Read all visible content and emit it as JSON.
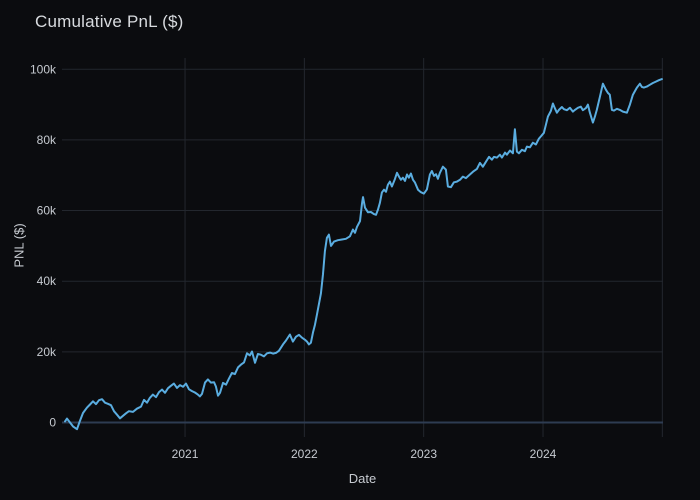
{
  "chart_data": {
    "type": "line",
    "title": "Cumulative PnL ($)",
    "xlabel": "Date",
    "ylabel": "PNL ($)",
    "legend": "none",
    "grid": true,
    "x_unit": "decimal_year",
    "xlim": [
      2019.97,
      2025.0
    ],
    "ylim": [
      -4000,
      103200
    ],
    "x_ticks": [
      {
        "value": 2021,
        "label": "2021"
      },
      {
        "value": 2022,
        "label": "2022"
      },
      {
        "value": 2023,
        "label": "2023"
      },
      {
        "value": 2024,
        "label": "2024"
      }
    ],
    "x_gridlines": [
      2021,
      2022,
      2023,
      2024,
      2025
    ],
    "y_ticks": [
      {
        "value": 0,
        "label": "0"
      },
      {
        "value": 20000,
        "label": "20k"
      },
      {
        "value": 40000,
        "label": "40k"
      },
      {
        "value": 60000,
        "label": "60k"
      },
      {
        "value": 80000,
        "label": "80k"
      },
      {
        "value": 100000,
        "label": "100k"
      }
    ],
    "theme": {
      "background": "#0b0c0f",
      "grid_color": "#23272e",
      "zeroline_color": "#2e3c52",
      "line_color": "#5aade0",
      "title_color": "#d8dbdf",
      "tick_color": "#c6cad0"
    },
    "series": [
      {
        "name": "Cumulative PnL",
        "color": "#5aade0",
        "points": [
          [
            2019.994,
            300
          ],
          [
            2020.011,
            1100
          ],
          [
            2020.036,
            0
          ],
          [
            2020.061,
            -1100
          ],
          [
            2020.095,
            -1900
          ],
          [
            2020.12,
            500
          ],
          [
            2020.145,
            2700
          ],
          [
            2020.178,
            4200
          ],
          [
            2020.204,
            5100
          ],
          [
            2020.229,
            6000
          ],
          [
            2020.254,
            5200
          ],
          [
            2020.279,
            6300
          ],
          [
            2020.304,
            6600
          ],
          [
            2020.329,
            5600
          ],
          [
            2020.354,
            5300
          ],
          [
            2020.38,
            4900
          ],
          [
            2020.405,
            3200
          ],
          [
            2020.43,
            2200
          ],
          [
            2020.455,
            1200
          ],
          [
            2020.48,
            1900
          ],
          [
            2020.505,
            2600
          ],
          [
            2020.53,
            3200
          ],
          [
            2020.564,
            3000
          ],
          [
            2020.597,
            3900
          ],
          [
            2020.631,
            4500
          ],
          [
            2020.656,
            6400
          ],
          [
            2020.681,
            5600
          ],
          [
            2020.706,
            7000
          ],
          [
            2020.731,
            7900
          ],
          [
            2020.757,
            7200
          ],
          [
            2020.782,
            8600
          ],
          [
            2020.807,
            9300
          ],
          [
            2020.832,
            8400
          ],
          [
            2020.857,
            9700
          ],
          [
            2020.882,
            10400
          ],
          [
            2020.907,
            11000
          ],
          [
            2020.933,
            9800
          ],
          [
            2020.958,
            10600
          ],
          [
            2020.983,
            10100
          ],
          [
            2021.008,
            11000
          ],
          [
            2021.033,
            9400
          ],
          [
            2021.058,
            8900
          ],
          [
            2021.083,
            8500
          ],
          [
            2021.108,
            7900
          ],
          [
            2021.125,
            7400
          ],
          [
            2021.142,
            8100
          ],
          [
            2021.167,
            11300
          ],
          [
            2021.192,
            12200
          ],
          [
            2021.217,
            11300
          ],
          [
            2021.243,
            11400
          ],
          [
            2021.259,
            10200
          ],
          [
            2021.276,
            7600
          ],
          [
            2021.293,
            8400
          ],
          [
            2021.318,
            11200
          ],
          [
            2021.343,
            10700
          ],
          [
            2021.368,
            12400
          ],
          [
            2021.393,
            14000
          ],
          [
            2021.418,
            13700
          ],
          [
            2021.444,
            15600
          ],
          [
            2021.469,
            16400
          ],
          [
            2021.494,
            17000
          ],
          [
            2021.519,
            19600
          ],
          [
            2021.544,
            19000
          ],
          [
            2021.561,
            20100
          ],
          [
            2021.586,
            16900
          ],
          [
            2021.611,
            19400
          ],
          [
            2021.636,
            19200
          ],
          [
            2021.661,
            18700
          ],
          [
            2021.687,
            19600
          ],
          [
            2021.712,
            19800
          ],
          [
            2021.737,
            19500
          ],
          [
            2021.762,
            19700
          ],
          [
            2021.787,
            20300
          ],
          [
            2021.821,
            22100
          ],
          [
            2021.846,
            23200
          ],
          [
            2021.879,
            24900
          ],
          [
            2021.904,
            22900
          ],
          [
            2021.93,
            24300
          ],
          [
            2021.955,
            24800
          ],
          [
            2021.98,
            24000
          ],
          [
            2022.005,
            23400
          ],
          [
            2022.022,
            22900
          ],
          [
            2022.038,
            22100
          ],
          [
            2022.055,
            22600
          ],
          [
            2022.072,
            25500
          ],
          [
            2022.089,
            27700
          ],
          [
            2022.105,
            30500
          ],
          [
            2022.122,
            33500
          ],
          [
            2022.139,
            36500
          ],
          [
            2022.156,
            42000
          ],
          [
            2022.172,
            48500
          ],
          [
            2022.189,
            52300
          ],
          [
            2022.206,
            53200
          ],
          [
            2022.223,
            50000
          ],
          [
            2022.248,
            51200
          ],
          [
            2022.281,
            51600
          ],
          [
            2022.315,
            51800
          ],
          [
            2022.348,
            52000
          ],
          [
            2022.382,
            52700
          ],
          [
            2022.407,
            54600
          ],
          [
            2022.424,
            53700
          ],
          [
            2022.441,
            55400
          ],
          [
            2022.466,
            57000
          ],
          [
            2022.483,
            62000
          ],
          [
            2022.491,
            63800
          ],
          [
            2022.508,
            60800
          ],
          [
            2022.533,
            59500
          ],
          [
            2022.558,
            59600
          ],
          [
            2022.583,
            59000
          ],
          [
            2022.6,
            58800
          ],
          [
            2022.617,
            60300
          ],
          [
            2022.633,
            62200
          ],
          [
            2022.65,
            65100
          ],
          [
            2022.667,
            65900
          ],
          [
            2022.684,
            65300
          ],
          [
            2022.7,
            67300
          ],
          [
            2022.717,
            68200
          ],
          [
            2022.734,
            66800
          ],
          [
            2022.759,
            68900
          ],
          [
            2022.776,
            70700
          ],
          [
            2022.793,
            69600
          ],
          [
            2022.809,
            68700
          ],
          [
            2022.826,
            69300
          ],
          [
            2022.843,
            68400
          ],
          [
            2022.86,
            70200
          ],
          [
            2022.876,
            69300
          ],
          [
            2022.893,
            70500
          ],
          [
            2022.91,
            68700
          ],
          [
            2022.927,
            67900
          ],
          [
            2022.952,
            65900
          ],
          [
            2022.977,
            65200
          ],
          [
            2023.002,
            64800
          ],
          [
            2023.027,
            66000
          ],
          [
            2023.052,
            70200
          ],
          [
            2023.069,
            71200
          ],
          [
            2023.086,
            69800
          ],
          [
            2023.103,
            70300
          ],
          [
            2023.119,
            69000
          ],
          [
            2023.136,
            70700
          ],
          [
            2023.161,
            72400
          ],
          [
            2023.186,
            71600
          ],
          [
            2023.203,
            66800
          ],
          [
            2023.228,
            66600
          ],
          [
            2023.253,
            68000
          ],
          [
            2023.278,
            68200
          ],
          [
            2023.304,
            68700
          ],
          [
            2023.329,
            69600
          ],
          [
            2023.354,
            69200
          ],
          [
            2023.387,
            70200
          ],
          [
            2023.413,
            71000
          ],
          [
            2023.446,
            71800
          ],
          [
            2023.471,
            73500
          ],
          [
            2023.496,
            72400
          ],
          [
            2023.521,
            73800
          ],
          [
            2023.547,
            75200
          ],
          [
            2023.572,
            74400
          ],
          [
            2023.588,
            75200
          ],
          [
            2023.614,
            75000
          ],
          [
            2023.639,
            75800
          ],
          [
            2023.655,
            75000
          ],
          [
            2023.681,
            76400
          ],
          [
            2023.697,
            75800
          ],
          [
            2023.723,
            77000
          ],
          [
            2023.748,
            76200
          ],
          [
            2023.764,
            83000
          ],
          [
            2023.781,
            76700
          ],
          [
            2023.798,
            76200
          ],
          [
            2023.823,
            77200
          ],
          [
            2023.848,
            76800
          ],
          [
            2023.865,
            78100
          ],
          [
            2023.89,
            77900
          ],
          [
            2023.915,
            79200
          ],
          [
            2023.94,
            78700
          ],
          [
            2023.965,
            80300
          ],
          [
            2023.982,
            81000
          ],
          [
            2024.007,
            82000
          ],
          [
            2024.024,
            84300
          ],
          [
            2024.041,
            86600
          ],
          [
            2024.066,
            88200
          ],
          [
            2024.083,
            90300
          ],
          [
            2024.099,
            89000
          ],
          [
            2024.116,
            87700
          ],
          [
            2024.133,
            88500
          ],
          [
            2024.158,
            89300
          ],
          [
            2024.175,
            88700
          ],
          [
            2024.2,
            88400
          ],
          [
            2024.225,
            89100
          ],
          [
            2024.25,
            88000
          ],
          [
            2024.267,
            88500
          ],
          [
            2024.292,
            89100
          ],
          [
            2024.317,
            89400
          ],
          [
            2024.334,
            88400
          ],
          [
            2024.359,
            89000
          ],
          [
            2024.376,
            90000
          ],
          [
            2024.393,
            87700
          ],
          [
            2024.418,
            84900
          ],
          [
            2024.435,
            86600
          ],
          [
            2024.451,
            88500
          ],
          [
            2024.477,
            92200
          ],
          [
            2024.502,
            95900
          ],
          [
            2024.527,
            94200
          ],
          [
            2024.544,
            93300
          ],
          [
            2024.56,
            92800
          ],
          [
            2024.577,
            88500
          ],
          [
            2024.594,
            88300
          ],
          [
            2024.619,
            88800
          ],
          [
            2024.644,
            88500
          ],
          [
            2024.669,
            88000
          ],
          [
            2024.703,
            87700
          ],
          [
            2024.728,
            90000
          ],
          [
            2024.753,
            92800
          ],
          [
            2024.787,
            94800
          ],
          [
            2024.812,
            95900
          ],
          [
            2024.828,
            95000
          ],
          [
            2024.845,
            94800
          ],
          [
            2024.87,
            95100
          ],
          [
            2024.895,
            95600
          ],
          [
            2024.921,
            96100
          ],
          [
            2024.946,
            96500
          ],
          [
            2024.971,
            96900
          ],
          [
            2024.996,
            97200
          ]
        ]
      }
    ]
  }
}
